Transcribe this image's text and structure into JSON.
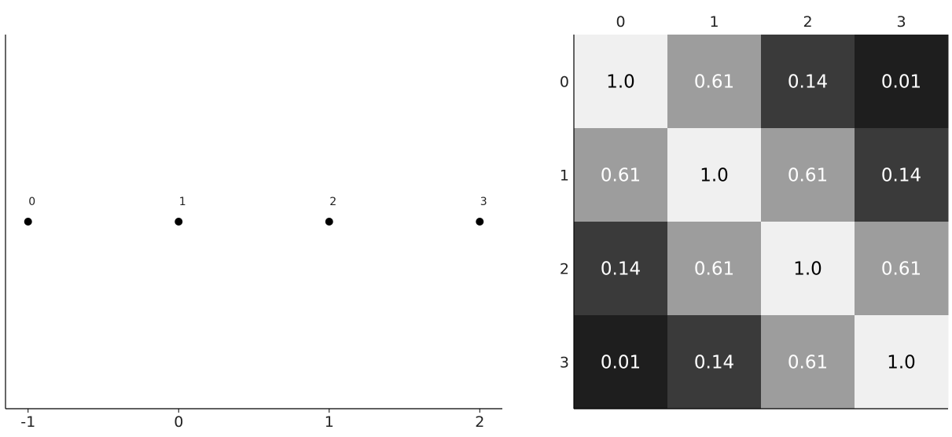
{
  "chart_data": [
    {
      "type": "scatter",
      "x": [
        -1,
        0,
        1,
        2
      ],
      "y": [
        0,
        0,
        0,
        0
      ],
      "point_labels": [
        "0",
        "1",
        "2",
        "3"
      ],
      "xticks": [
        "-1",
        "0",
        "1",
        "2"
      ],
      "xlim": [
        -1.15,
        2.15
      ],
      "ylim": [
        -1,
        1
      ],
      "grid": false,
      "color": "#000000"
    },
    {
      "type": "heatmap",
      "row_labels": [
        "0",
        "1",
        "2",
        "3"
      ],
      "col_labels": [
        "0",
        "1",
        "2",
        "3"
      ],
      "values": [
        [
          1.0,
          0.61,
          0.14,
          0.01
        ],
        [
          0.61,
          1.0,
          0.61,
          0.14
        ],
        [
          0.14,
          0.61,
          1.0,
          0.61
        ],
        [
          0.01,
          0.14,
          0.61,
          1.0
        ]
      ],
      "cell_text": [
        [
          "1.0",
          "0.61",
          "0.14",
          "0.01"
        ],
        [
          "0.61",
          "1.0",
          "0.61",
          "0.14"
        ],
        [
          "0.14",
          "0.61",
          "1.0",
          "0.61"
        ],
        [
          "0.01",
          "0.14",
          "0.61",
          "1.0"
        ]
      ],
      "colormap": "gray",
      "col_labels_position": "top"
    }
  ]
}
